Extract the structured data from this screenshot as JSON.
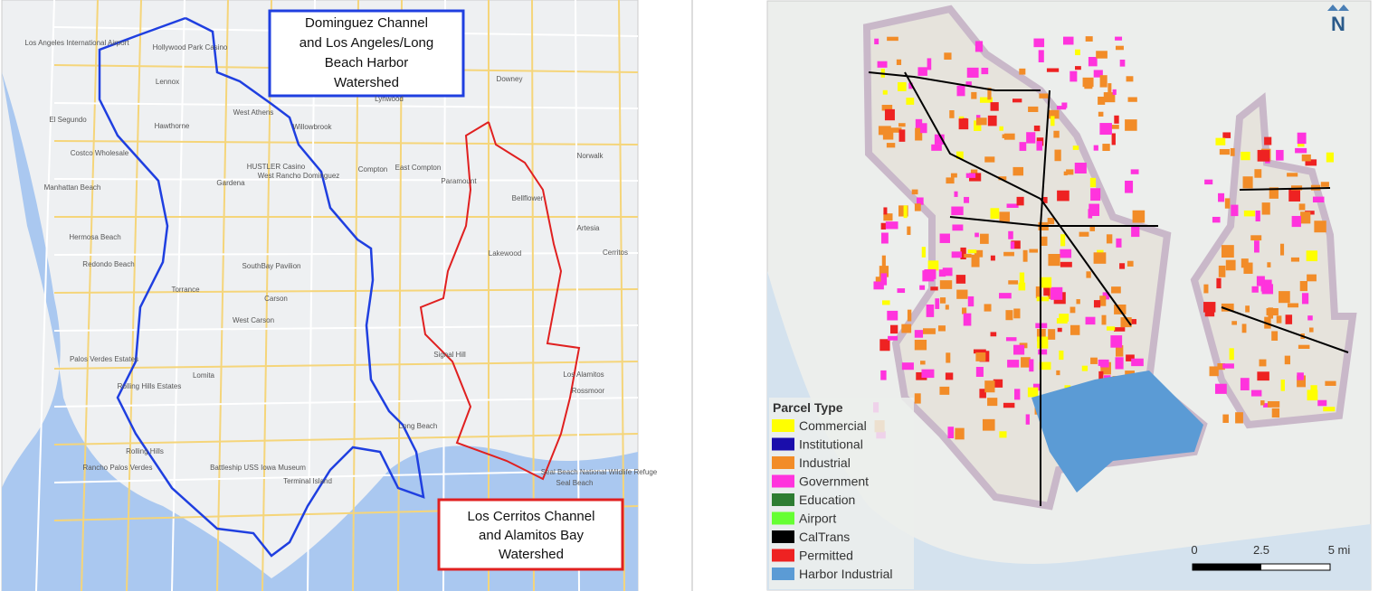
{
  "left_map": {
    "dominguez_label": [
      "Dominguez Channel",
      "and Los Angeles/Long",
      "Beach Harbor",
      "Watershed"
    ],
    "cerritos_label": [
      "Los Cerritos Channel",
      "and Alamitos Bay",
      "Watershed"
    ],
    "places": [
      "El Segundo",
      "Hawthorne",
      "Lennox",
      "Manhattan Beach",
      "Hermosa Beach",
      "Redondo Beach",
      "Torrance",
      "Gardena",
      "Carson",
      "West Carson",
      "Compton",
      "East Compton",
      "Paramount",
      "Bellflower",
      "Lakewood",
      "Downey",
      "Norwalk",
      "Lynwood",
      "Cerritos",
      "Artesia",
      "Long Beach",
      "Signal Hill",
      "Seal Beach",
      "Lomita",
      "Rolling Hills Estates",
      "Palos Verdes Estates",
      "Rolling Hills",
      "Los Alamitos",
      "Rossmoor",
      "Willowbrook",
      "West Athens",
      "Costco Wholesale",
      "HUSTLER Casino",
      "SouthBay Pavilion",
      "West Rancho Dominguez",
      "Los Angeles International Airport",
      "Hollywood Park Casino",
      "Rancho Palos Verdes",
      "Terminal Island",
      "Battleship USS Iowa Museum",
      "Seal Beach National Wildlife Refuge"
    ]
  },
  "right_map": {
    "north": "N",
    "legend": {
      "title": "Parcel Type",
      "items": [
        {
          "label": "Commercial",
          "color": "#ffff00"
        },
        {
          "label": "Institutional",
          "color": "#1a0dab"
        },
        {
          "label": "Industrial",
          "color": "#f28c28"
        },
        {
          "label": "Government",
          "color": "#ff33dd"
        },
        {
          "label": "Education",
          "color": "#2e7d32"
        },
        {
          "label": "Airport",
          "color": "#66ff33"
        },
        {
          "label": "CalTrans",
          "color": "#000000"
        },
        {
          "label": "Permitted",
          "color": "#ee2222"
        },
        {
          "label": "Harbor Industrial",
          "color": "#5b9bd5"
        }
      ]
    },
    "scale": [
      "0",
      "2.5",
      "5 mi"
    ]
  }
}
